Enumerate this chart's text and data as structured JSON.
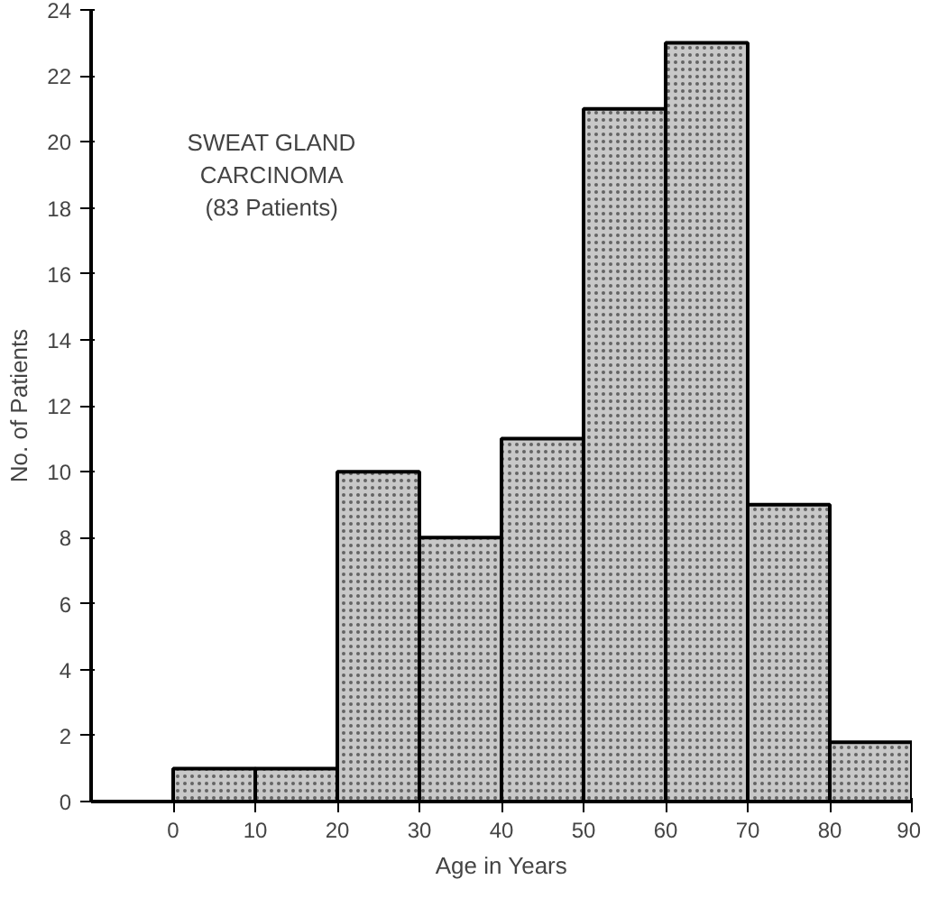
{
  "chart_data": {
    "type": "histogram",
    "xlabel": "Age in Years",
    "ylabel": "No. of Patients",
    "bins": [
      0,
      10,
      20,
      30,
      40,
      50,
      60,
      70,
      80,
      90
    ],
    "values": [
      1,
      1,
      10,
      8,
      11,
      21,
      23,
      9,
      1.8
    ],
    "color": "#c8c8c8",
    "xlim": [
      -10,
      90
    ],
    "ylim": [
      0,
      24
    ],
    "xticks": [
      0,
      10,
      20,
      30,
      40,
      50,
      60,
      70,
      80,
      90
    ],
    "yticks": [
      0,
      2,
      4,
      6,
      8,
      10,
      12,
      14,
      16,
      18,
      20,
      22,
      24
    ],
    "grid": false,
    "annotations": [
      "SWEAT GLAND\nCARCINOMA\n(83 Patients)"
    ]
  }
}
